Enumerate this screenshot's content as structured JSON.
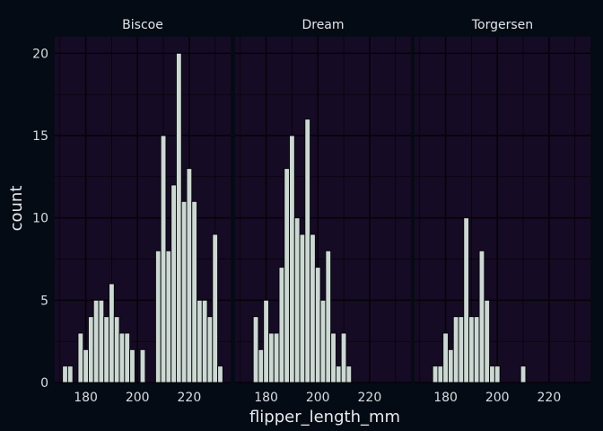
{
  "chart_data": {
    "type": "bar",
    "subtype": "faceted-histogram",
    "xlabel": "flipper_length_mm",
    "ylabel": "count",
    "xlim": [
      168,
      236
    ],
    "ylim": [
      0,
      21
    ],
    "x_ticks": [
      180,
      200,
      220
    ],
    "y_ticks": [
      0,
      5,
      10,
      15,
      20
    ],
    "bin_width": 2,
    "grid": true,
    "legend": "none",
    "colors": {
      "background": "#050b14",
      "panel": "#160b24",
      "grid": "#050209",
      "bar_fill": "#cbd9d2",
      "bar_stroke": "#050209"
    },
    "panels": [
      {
        "name": "Biscoe",
        "bins": [
          {
            "x": 172,
            "count": 1
          },
          {
            "x": 174,
            "count": 1
          },
          {
            "x": 178,
            "count": 3
          },
          {
            "x": 180,
            "count": 2
          },
          {
            "x": 182,
            "count": 4
          },
          {
            "x": 184,
            "count": 5
          },
          {
            "x": 186,
            "count": 5
          },
          {
            "x": 188,
            "count": 4
          },
          {
            "x": 190,
            "count": 6
          },
          {
            "x": 192,
            "count": 4
          },
          {
            "x": 194,
            "count": 3
          },
          {
            "x": 196,
            "count": 3
          },
          {
            "x": 198,
            "count": 2
          },
          {
            "x": 202,
            "count": 2
          },
          {
            "x": 208,
            "count": 8
          },
          {
            "x": 210,
            "count": 15
          },
          {
            "x": 212,
            "count": 8
          },
          {
            "x": 214,
            "count": 12
          },
          {
            "x": 216,
            "count": 20
          },
          {
            "x": 218,
            "count": 11
          },
          {
            "x": 220,
            "count": 13
          },
          {
            "x": 222,
            "count": 11
          },
          {
            "x": 224,
            "count": 5
          },
          {
            "x": 226,
            "count": 5
          },
          {
            "x": 228,
            "count": 4
          },
          {
            "x": 230,
            "count": 9
          },
          {
            "x": 232,
            "count": 1
          }
        ]
      },
      {
        "name": "Dream",
        "bins": [
          {
            "x": 176,
            "count": 4
          },
          {
            "x": 178,
            "count": 2
          },
          {
            "x": 180,
            "count": 5
          },
          {
            "x": 182,
            "count": 3
          },
          {
            "x": 184,
            "count": 3
          },
          {
            "x": 186,
            "count": 7
          },
          {
            "x": 188,
            "count": 13
          },
          {
            "x": 190,
            "count": 15
          },
          {
            "x": 192,
            "count": 10
          },
          {
            "x": 194,
            "count": 9
          },
          {
            "x": 196,
            "count": 16
          },
          {
            "x": 198,
            "count": 9
          },
          {
            "x": 200,
            "count": 7
          },
          {
            "x": 202,
            "count": 5
          },
          {
            "x": 204,
            "count": 8
          },
          {
            "x": 206,
            "count": 3
          },
          {
            "x": 208,
            "count": 1
          },
          {
            "x": 210,
            "count": 3
          },
          {
            "x": 212,
            "count": 1
          }
        ]
      },
      {
        "name": "Torgersen",
        "bins": [
          {
            "x": 176,
            "count": 1
          },
          {
            "x": 178,
            "count": 1
          },
          {
            "x": 180,
            "count": 3
          },
          {
            "x": 182,
            "count": 2
          },
          {
            "x": 184,
            "count": 4
          },
          {
            "x": 186,
            "count": 4
          },
          {
            "x": 188,
            "count": 10
          },
          {
            "x": 190,
            "count": 4
          },
          {
            "x": 192,
            "count": 4
          },
          {
            "x": 194,
            "count": 8
          },
          {
            "x": 196,
            "count": 5
          },
          {
            "x": 198,
            "count": 1
          },
          {
            "x": 200,
            "count": 1
          },
          {
            "x": 210,
            "count": 1
          }
        ]
      }
    ]
  }
}
